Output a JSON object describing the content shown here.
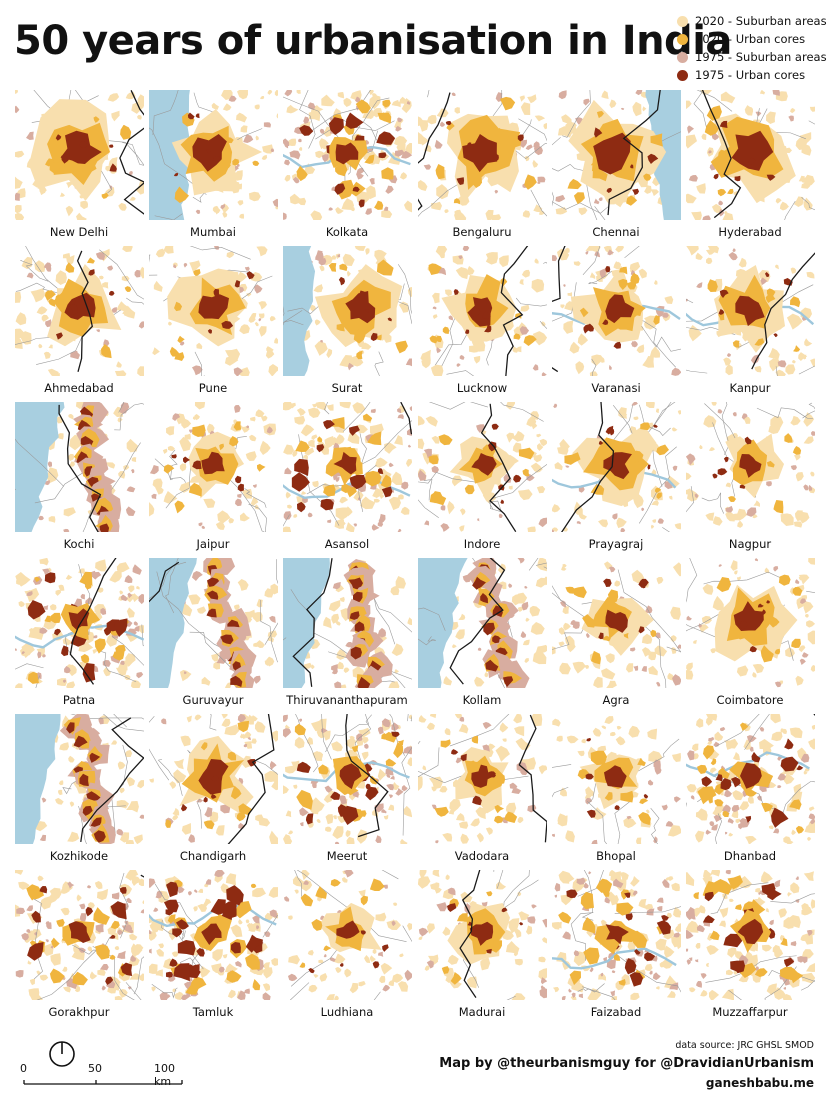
{
  "title": "50 years of urbanisation in India",
  "legend": [
    {
      "label": "2020 - Suburban areas",
      "color": "#f8dfae"
    },
    {
      "label": "2020 - Urban cores",
      "color": "#f0b53e"
    },
    {
      "label": "1975 - Suburban areas",
      "color": "#d8ada0"
    },
    {
      "label": "1975 - Urban cores",
      "color": "#8e2b12"
    }
  ],
  "colors": {
    "sea": "#a8cfe0",
    "river": "#9ec7dc",
    "boundary": "#1a1a1a",
    "district": "#9a9a9a",
    "background": "#ffffff"
  },
  "cities": [
    {
      "name": "New Delhi",
      "kind": "inland-big"
    },
    {
      "name": "Mumbai",
      "kind": "coast-west-mumbai"
    },
    {
      "name": "Kolkata",
      "kind": "sprawl-river"
    },
    {
      "name": "Bengaluru",
      "kind": "inland-big"
    },
    {
      "name": "Chennai",
      "kind": "coast-east"
    },
    {
      "name": "Hyderabad",
      "kind": "inland-big"
    },
    {
      "name": "Ahmedabad",
      "kind": "inland"
    },
    {
      "name": "Pune",
      "kind": "inland"
    },
    {
      "name": "Surat",
      "kind": "coast-west-small"
    },
    {
      "name": "Lucknow",
      "kind": "inland"
    },
    {
      "name": "Varanasi",
      "kind": "inland-river"
    },
    {
      "name": "Kanpur",
      "kind": "inland-river"
    },
    {
      "name": "Kochi",
      "kind": "coast-west-strip"
    },
    {
      "name": "Jaipur",
      "kind": "inland-small"
    },
    {
      "name": "Asansol",
      "kind": "sprawl-band"
    },
    {
      "name": "Indore",
      "kind": "inland-small"
    },
    {
      "name": "Prayagraj",
      "kind": "inland-river"
    },
    {
      "name": "Nagpur",
      "kind": "inland-small"
    },
    {
      "name": "Patna",
      "kind": "sprawl-river"
    },
    {
      "name": "Guruvayur",
      "kind": "coast-west-strip"
    },
    {
      "name": "Thiruvananthapuram",
      "kind": "coast-west-strip"
    },
    {
      "name": "Kollam",
      "kind": "coast-west-strip"
    },
    {
      "name": "Agra",
      "kind": "inland-small"
    },
    {
      "name": "Coimbatore",
      "kind": "inland"
    },
    {
      "name": "Kozhikode",
      "kind": "coast-west-strip"
    },
    {
      "name": "Chandigarh",
      "kind": "inland-border"
    },
    {
      "name": "Meerut",
      "kind": "sprawl-band"
    },
    {
      "name": "Vadodara",
      "kind": "inland-small"
    },
    {
      "name": "Bhopal",
      "kind": "inland-small"
    },
    {
      "name": "Dhanbad",
      "kind": "sprawl-band"
    },
    {
      "name": "Gorakhpur",
      "kind": "sprawl"
    },
    {
      "name": "Tamluk",
      "kind": "sprawl-dense"
    },
    {
      "name": "Ludhiana",
      "kind": "inland-small"
    },
    {
      "name": "Madurai",
      "kind": "inland-small"
    },
    {
      "name": "Faizabad",
      "kind": "sprawl-river"
    },
    {
      "name": "Muzzaffarpur",
      "kind": "sprawl"
    }
  ],
  "scale_bar": {
    "labels": [
      "0",
      "50",
      "100 km"
    ]
  },
  "credits": {
    "source": "data source: JRC GHSL SMOD",
    "author": "Map by @theurbanismguy for @DravidianUrbanism",
    "website": "ganeshbabu.me"
  }
}
